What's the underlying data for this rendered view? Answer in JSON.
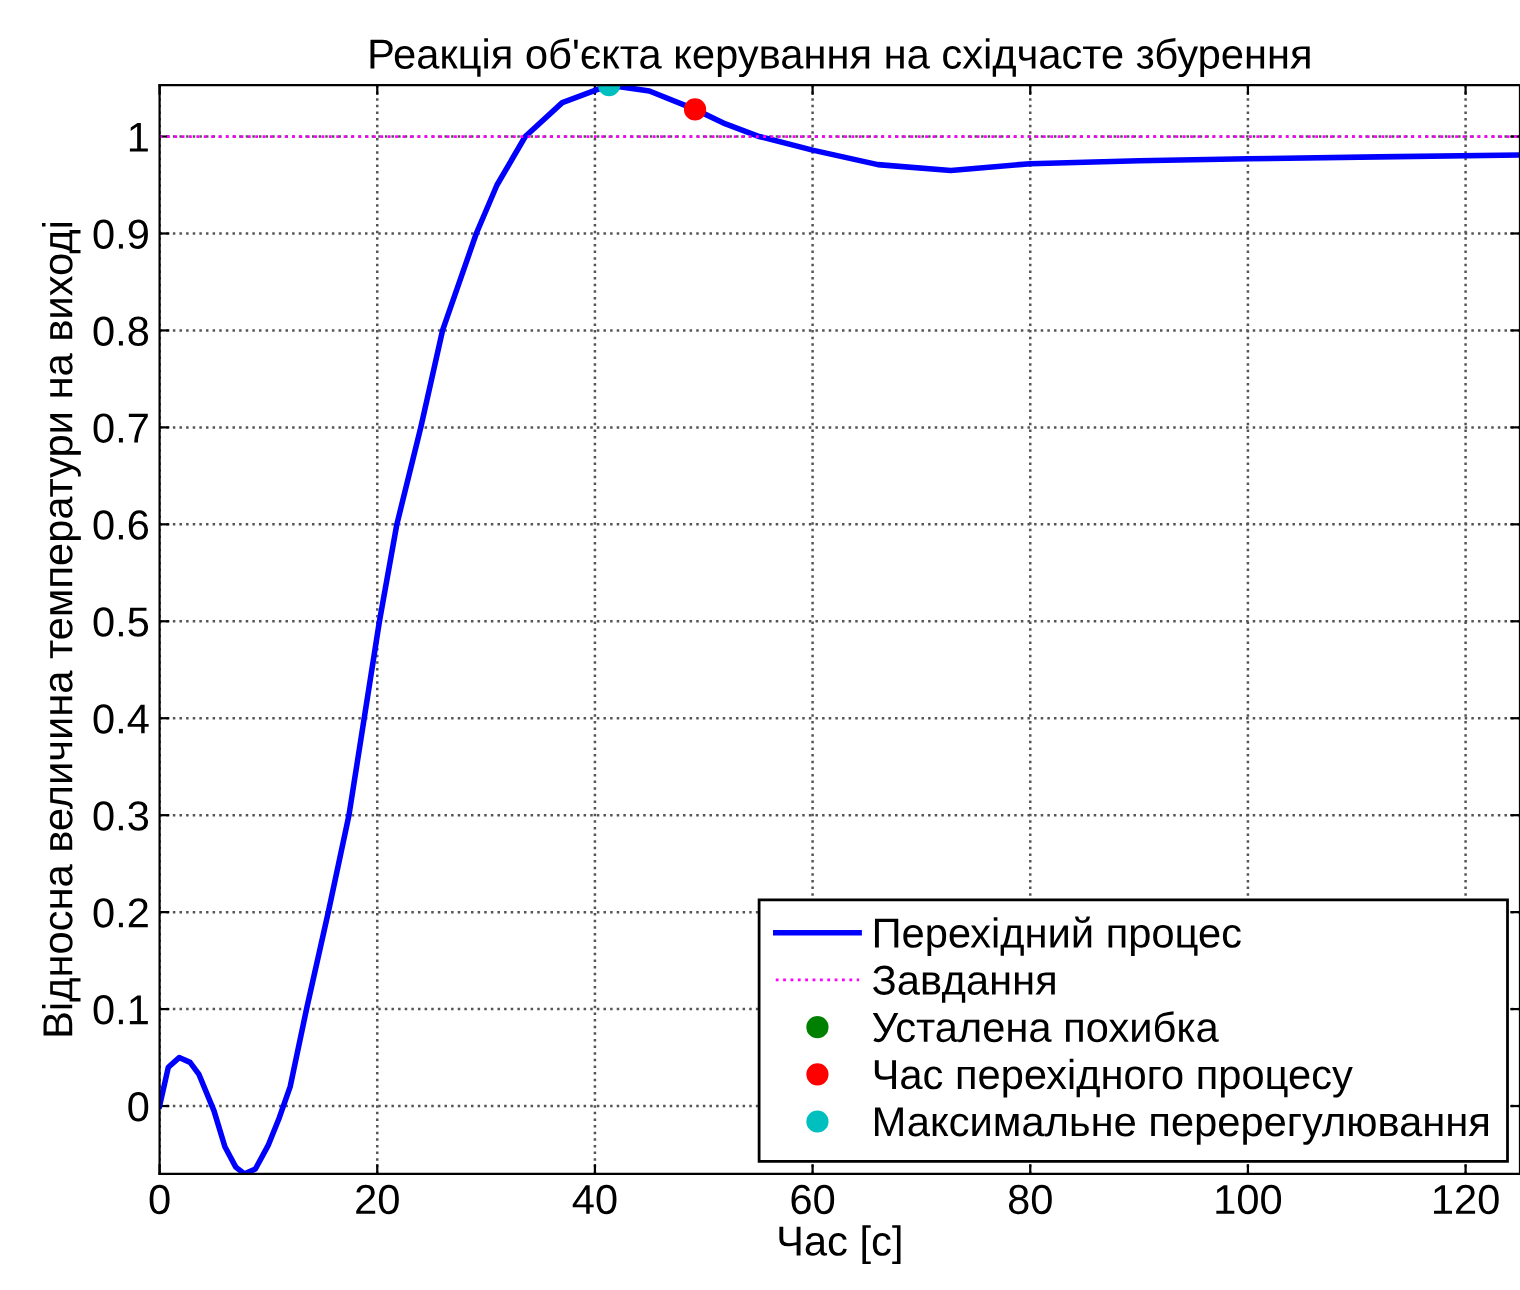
{
  "chart_data": {
    "type": "line",
    "title": "Реакція об'єкта керування на східчасте збурення",
    "xlabel": "Час [с]",
    "ylabel": "Відносна величина температури на виході",
    "xlim": [
      0,
      125
    ],
    "ylim": [
      -0.07,
      1.053
    ],
    "xticks": [
      0,
      20,
      40,
      60,
      80,
      100,
      120
    ],
    "yticks": [
      0,
      0.1,
      0.2,
      0.3,
      0.4,
      0.5,
      0.6,
      0.7,
      0.8,
      0.9,
      1
    ],
    "grid": true,
    "legend": "bottom right",
    "series": [
      {
        "name": "Перехідний процес",
        "color": "#0000ff",
        "line_style": "solid",
        "x": [
          0,
          0.8,
          1.8,
          2.8,
          3.6,
          5,
          6,
          7,
          7.8,
          8.8,
          10,
          11,
          12,
          13.5,
          15.5,
          17.4,
          20.2,
          21.8,
          24,
          26,
          29.1,
          31,
          33.6,
          37,
          41.3,
          45,
          49.2,
          52,
          55.1,
          60,
          66,
          72.7,
          80,
          90,
          100,
          112,
          125
        ],
        "values": [
          0,
          0.04,
          0.05,
          0.045,
          0.033,
          -0.005,
          -0.042,
          -0.063,
          -0.07,
          -0.065,
          -0.04,
          -0.012,
          0.02,
          0.1,
          0.2,
          0.3,
          0.5,
          0.6,
          0.7,
          0.8,
          0.9,
          0.95,
          1.0,
          1.035,
          1.053,
          1.047,
          1.028,
          1.013,
          1.0,
          0.986,
          0.971,
          0.965,
          0.972,
          0.975,
          0.977,
          0.979,
          0.981
        ]
      },
      {
        "name": "Завдання",
        "color": "#ff00ff",
        "line_style": "dotted",
        "x": [
          0,
          125
        ],
        "values": [
          1,
          1
        ]
      },
      {
        "name": "Усталена похибка",
        "type": "scatter",
        "color": "#008000",
        "marker": "circle"
      },
      {
        "name": "Час перехідного процесу",
        "type": "scatter",
        "color": "#ff0000",
        "marker": "circle",
        "x": [
          49.2
        ],
        "values": [
          1.028
        ]
      },
      {
        "name": "Максимальне перерегулювання",
        "type": "scatter",
        "color": "#00bfbf",
        "marker": "circle",
        "x": [
          41.3
        ],
        "values": [
          1.053
        ]
      }
    ]
  }
}
